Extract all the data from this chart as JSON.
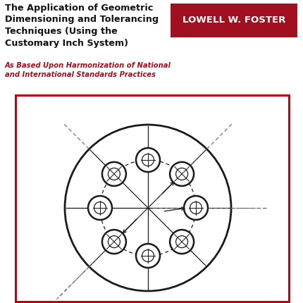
{
  "bg_color": "#ffffff",
  "title_line1": "The Application of Geometric",
  "title_line2": "Dimensioning and Tolerancing",
  "title_line3": "Techniques (Using the",
  "title_line4": "Customary Inch System)",
  "author_name": "LOWELL W. FOSTER",
  "author_bg": "#a01020",
  "author_text_color": "#ffffff",
  "subtitle": "As Based Upon Harmonization of National\nand International Standards Practices",
  "subtitle_color": "#a01020",
  "box_color": "#c0000c",
  "line_color": "#1a1a1a",
  "dashed_color": "#666666"
}
